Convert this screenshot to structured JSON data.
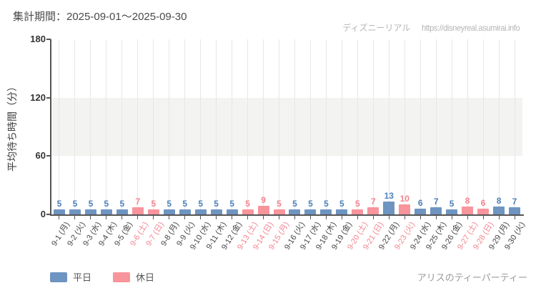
{
  "site": {
    "watermark_name": "ディズニーリアル",
    "watermark_url": "https://disneyreal.asumirai.info",
    "attraction": "アリスのティーパーティー"
  },
  "legend": [
    {
      "id": "weekday",
      "label": "平日",
      "color": "#6e95c1"
    },
    {
      "id": "holiday",
      "label": "休日",
      "color": "#f8949c"
    }
  ],
  "colors": {
    "weekday_bar": "#6e95c1",
    "holiday_bar": "#f8949c",
    "weekday_value_label": "#4d82bd",
    "holiday_value_label": "#f4838e",
    "weekday_axis_label": "#444444",
    "holiday_axis_label": "#f2858e",
    "band": "#f3f3f1",
    "gridline": "#e7e7e7",
    "axis": "#555555",
    "title_text": "#4a4a4a",
    "watermark_text": "#b4b4b4",
    "footer_text": "#9a9a9a"
  },
  "chart_data": {
    "type": "bar",
    "title": "集計期間：2025-09-01～2025-09-30",
    "xlabel": "",
    "ylabel": "平均待ち時間（分）",
    "ylim": [
      0,
      180
    ],
    "yticks": [
      0,
      60,
      120,
      180
    ],
    "shaded_band_y": [
      60,
      120
    ],
    "grid": "vertical",
    "legend_position": "bottom-left",
    "unit": "分",
    "categories": [
      "9-1 (月)",
      "9-2 (火)",
      "9-3 (水)",
      "9-4 (木)",
      "9-5 (金)",
      "9-6 (土)",
      "9-7 (日)",
      "9-8 (月)",
      "9-9 (火)",
      "9-10 (水)",
      "9-11 (木)",
      "9-12 (金)",
      "9-13 (土)",
      "9-14 (日)",
      "9-15 (月)",
      "9-16 (火)",
      "9-17 (水)",
      "9-18 (木)",
      "9-19 (金)",
      "9-20 (土)",
      "9-21 (日)",
      "9-22 (月)",
      "9-23 (火)",
      "9-24 (水)",
      "9-25 (木)",
      "9-26 (金)",
      "9-27 (土)",
      "9-28 (日)",
      "9-29 (月)",
      "9-30 (火)"
    ],
    "values": [
      5,
      5,
      5,
      5,
      5,
      7,
      5,
      5,
      5,
      5,
      5,
      5,
      5,
      9,
      5,
      5,
      5,
      5,
      5,
      5,
      7,
      13,
      10,
      6,
      7,
      5,
      8,
      6,
      8,
      7
    ],
    "day_type": [
      "weekday",
      "weekday",
      "weekday",
      "weekday",
      "weekday",
      "holiday",
      "holiday",
      "weekday",
      "weekday",
      "weekday",
      "weekday",
      "weekday",
      "holiday",
      "holiday",
      "holiday",
      "weekday",
      "weekday",
      "weekday",
      "weekday",
      "holiday",
      "holiday",
      "weekday",
      "holiday",
      "weekday",
      "weekday",
      "weekday",
      "holiday",
      "holiday",
      "weekday",
      "weekday"
    ]
  }
}
